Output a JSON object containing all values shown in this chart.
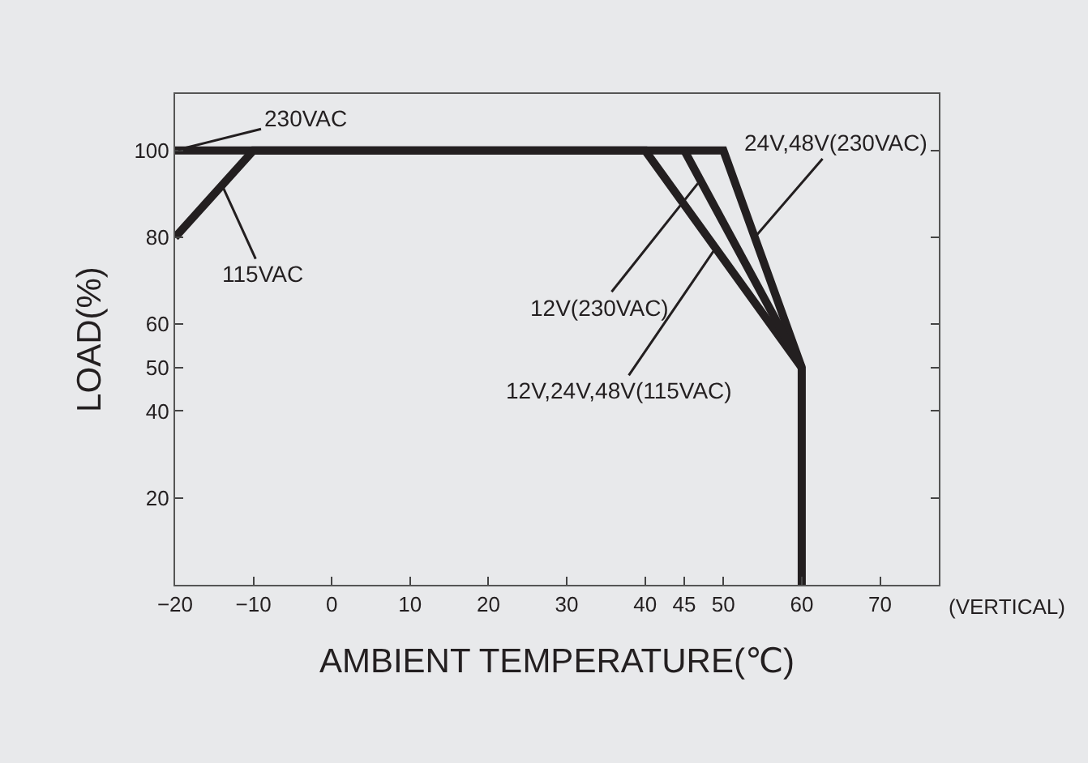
{
  "chart_data": {
    "type": "line",
    "xlabel": "AMBIENT TEMPERATURE(℃)",
    "ylabel": "LOAD(%)",
    "xlim": [
      -20,
      77.5
    ],
    "xticks": [
      -20,
      -10,
      0,
      10,
      20,
      30,
      40,
      45,
      50,
      60,
      70
    ],
    "ylim": [
      0,
      113
    ],
    "yticks": [
      20,
      40,
      50,
      60,
      80,
      100
    ],
    "grid": false,
    "marker": "none",
    "line_style": "solid",
    "series": [
      {
        "color": "#231f20",
        "x": [
          -20,
          50,
          60,
          60
        ],
        "values": [
          100,
          100,
          50,
          0
        ]
      },
      {
        "color": "#231f20",
        "x": [
          -20,
          -10,
          40,
          60
        ],
        "values": [
          80,
          100,
          100,
          50
        ]
      },
      {
        "color": "#231f20",
        "x": [
          45,
          60
        ],
        "values": [
          100,
          50
        ]
      }
    ],
    "annotations": [
      {
        "text": "230VAC",
        "x": -20,
        "y": 100
      },
      {
        "text": "115VAC",
        "x": -14,
        "y": 92
      },
      {
        "text": "12V(230VAC)",
        "x": 47,
        "y": 93
      },
      {
        "text": "24V,48V(230VAC)",
        "x": 54,
        "y": 80
      },
      {
        "text": "12V,24V,48V(115VAC)",
        "x": 49,
        "y": 77.5
      },
      "(VERTICAL)"
    ]
  }
}
